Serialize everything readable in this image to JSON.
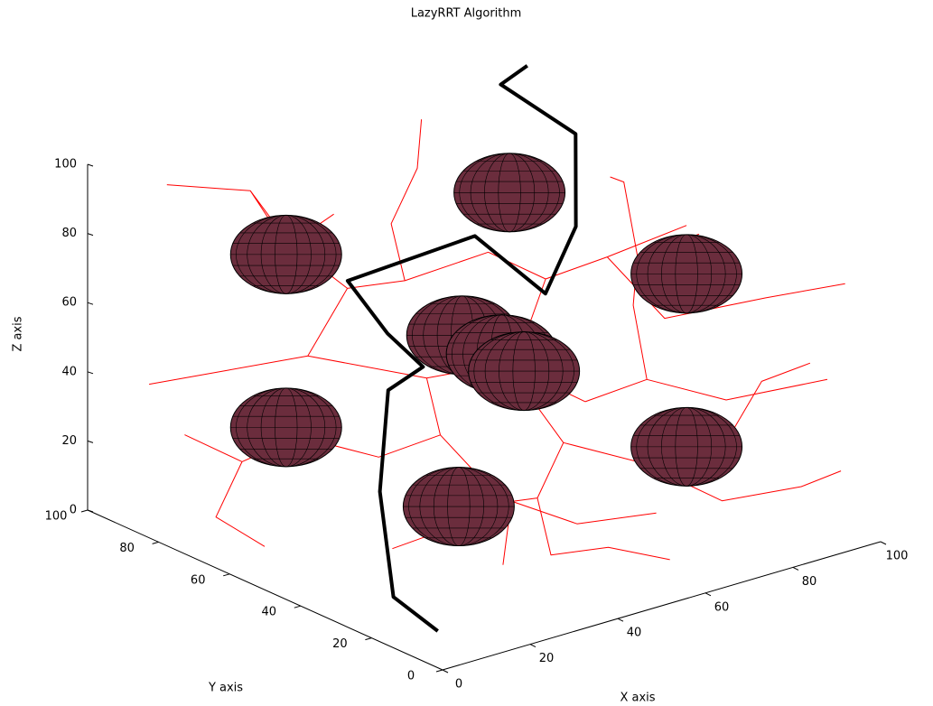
{
  "chart_data": {
    "type": "line3d",
    "title": "LazyRRT Algorithm",
    "xlabel": "X axis",
    "ylabel": "Y axis",
    "zlabel": "Z axis",
    "xlim": [
      0,
      100
    ],
    "ylim": [
      0,
      100
    ],
    "zlim": [
      0,
      100
    ],
    "xticks": [
      0,
      20,
      40,
      60,
      80,
      100
    ],
    "yticks": [
      0,
      20,
      40,
      60,
      80,
      100
    ],
    "zticks": [
      0,
      20,
      40,
      60,
      80,
      100
    ],
    "tree": {
      "color": "#ff0000",
      "x": [
        10,
        25,
        30,
        40,
        null,
        30,
        35,
        40,
        55,
        null,
        55,
        60,
        70,
        80,
        null,
        70,
        75,
        90,
        100,
        null,
        35,
        30,
        20,
        10,
        null,
        30,
        45,
        55,
        65,
        null,
        65,
        75,
        85,
        100,
        null,
        55,
        60,
        70,
        80,
        null,
        60,
        50,
        40,
        30,
        null,
        70,
        80,
        90,
        95,
        null,
        45,
        40,
        30,
        20,
        null,
        40,
        45,
        55,
        65,
        null,
        20,
        15,
        10,
        null,
        50,
        45,
        50,
        60,
        null,
        75,
        80,
        85,
        95,
        null,
        40,
        45,
        55,
        60,
        null,
        25,
        20,
        15,
        null,
        80,
        85,
        92,
        null,
        45,
        35,
        25,
        null,
        85,
        90,
        95,
        null,
        60,
        50,
        40,
        null,
        15,
        5,
        8
      ],
      "y": [
        90,
        85,
        80,
        80,
        null,
        80,
        70,
        60,
        55,
        null,
        55,
        45,
        40,
        30,
        null,
        40,
        30,
        20,
        10,
        null,
        70,
        75,
        85,
        95,
        null,
        75,
        60,
        50,
        40,
        null,
        40,
        35,
        25,
        15,
        null,
        50,
        40,
        30,
        20,
        null,
        40,
        35,
        30,
        20,
        null,
        30,
        20,
        10,
        5,
        null,
        60,
        50,
        55,
        65,
        null,
        50,
        40,
        30,
        20,
        null,
        65,
        75,
        85,
        null,
        35,
        25,
        15,
        10,
        null,
        35,
        45,
        50,
        45,
        null,
        60,
        70,
        75,
        80,
        null,
        85,
        70,
        60,
        null,
        20,
        15,
        10,
        null,
        40,
        40,
        45,
        null,
        50,
        60,
        70,
        null,
        45,
        40,
        45,
        null,
        75,
        70,
        60
      ],
      "z": [
        95,
        90,
        75,
        80,
        null,
        75,
        65,
        70,
        75,
        null,
        75,
        70,
        75,
        85,
        null,
        75,
        60,
        65,
        70,
        null,
        65,
        45,
        40,
        35,
        null,
        45,
        40,
        45,
        35,
        null,
        35,
        40,
        35,
        40,
        null,
        45,
        25,
        20,
        25,
        null,
        25,
        15,
        20,
        10,
        null,
        20,
        10,
        15,
        20,
        null,
        40,
        30,
        25,
        30,
        null,
        30,
        15,
        8,
        12,
        null,
        30,
        20,
        25,
        null,
        15,
        5,
        10,
        5,
        null,
        40,
        55,
        65,
        70,
        null,
        70,
        80,
        90,
        100,
        null,
        90,
        85,
        95,
        null,
        25,
        45,
        50,
        null,
        15,
        10,
        5,
        null,
        65,
        80,
        75,
        null,
        70,
        55,
        50,
        null,
        20,
        10,
        5
      ]
    },
    "path": {
      "color": "#000000",
      "x": [
        7,
        5,
        10,
        20,
        32,
        32,
        31,
        56,
        64,
        75,
        79,
        70,
        72
      ],
      "y": [
        10,
        20,
        30,
        40,
        45,
        55,
        65,
        60,
        50,
        55,
        60,
        70,
        65
      ],
      "z": [
        4,
        10,
        34,
        55,
        55,
        60,
        71,
        77,
        62,
        75,
        98,
        111,
        118
      ]
    },
    "obstacles": {
      "color": "#6b2d3d",
      "x": [
        21,
        72,
        80,
        21,
        80,
        28,
        45,
        50,
        51
      ],
      "y": [
        70,
        70,
        30,
        70,
        30,
        30,
        50,
        45,
        40
      ],
      "z": [
        80,
        79,
        71,
        30,
        21,
        23,
        57,
        52,
        49
      ],
      "r": [
        15,
        15,
        15,
        15,
        15,
        15,
        15,
        15,
        15
      ]
    }
  }
}
